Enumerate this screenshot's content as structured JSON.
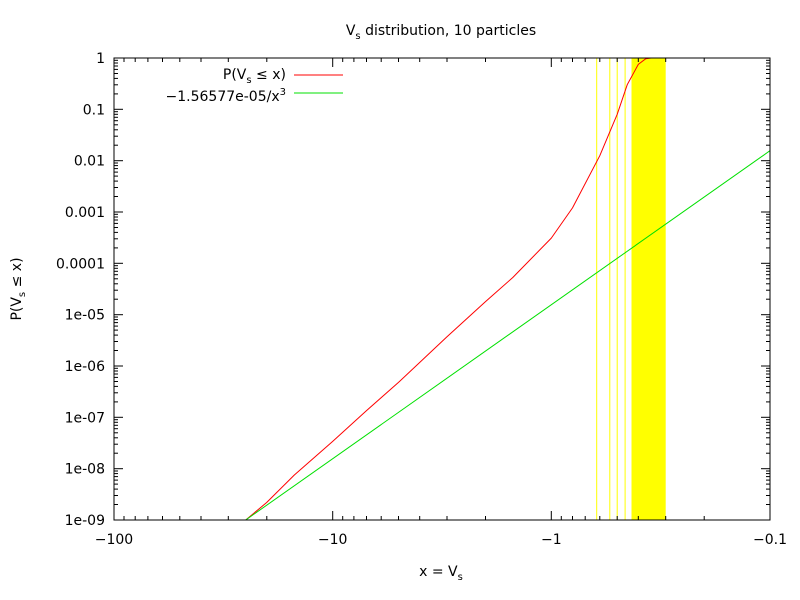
{
  "chart_data": {
    "type": "line",
    "title": {
      "main": "V",
      "sub": "s",
      "rest": " distribution, 10 particles"
    },
    "xlabel": {
      "main": "x = V",
      "sub": "s"
    },
    "ylabel": {
      "pre": "P(V",
      "sub": "s",
      "post": " ≤ x)"
    },
    "x_axis": {
      "scale": "log-negative",
      "range": [
        -100,
        -0.1
      ],
      "ticks": [
        -100,
        -10,
        -1,
        -0.1
      ],
      "tick_labels": [
        "−100",
        "−10",
        "−1",
        "−0.1"
      ]
    },
    "y_axis": {
      "scale": "log",
      "range": [
        1e-09,
        1
      ],
      "ticks": [
        1e-09,
        1e-08,
        1e-07,
        1e-06,
        1e-05,
        0.0001,
        0.001,
        0.01,
        0.1,
        1
      ],
      "tick_labels": [
        "1e-09",
        "1e-08",
        "1e-07",
        "1e-06",
        "1e-05",
        "0.0001",
        "0.001",
        "0.01",
        "0.1",
        "1"
      ]
    },
    "grid": false,
    "legend_position": "top-left",
    "series": [
      {
        "name": "P(V_s ≤ x)",
        "legend": {
          "pre": "P(V",
          "sub": "s",
          "post": " ≤ x)"
        },
        "color": "#ff0000",
        "points": [
          [
            -25.0,
            1e-09
          ],
          [
            -20.0,
            2.2e-09
          ],
          [
            -15.0,
            7.5e-09
          ],
          [
            -10.0,
            3.4e-08
          ],
          [
            -7.0,
            1.35e-07
          ],
          [
            -5.0,
            4.8e-07
          ],
          [
            -3.0,
            3.7e-06
          ],
          [
            -2.0,
            1.8e-05
          ],
          [
            -1.5,
            5.3e-05
          ],
          [
            -1.0,
            0.00031
          ],
          [
            -0.8,
            0.0012
          ],
          [
            -0.6,
            0.0125
          ],
          [
            -0.5,
            0.08
          ],
          [
            -0.45,
            0.3
          ],
          [
            -0.4,
            0.75
          ],
          [
            -0.37,
            0.97
          ],
          [
            -0.35,
            1.0
          ],
          [
            -0.27,
            1.0
          ]
        ]
      },
      {
        "name": "−1.56577e-05/x^3",
        "legend": {
          "pre": "−1.56577e-05/x",
          "sup": "3",
          "post": ""
        },
        "color": "#00e000",
        "points": [
          [
            -25.0,
            1e-09
          ],
          [
            -0.1,
            0.0156577
          ]
        ]
      }
    ],
    "highlight": {
      "color": "#ffff00",
      "thin_lines": [
        -0.62,
        -0.54,
        -0.5,
        -0.46
      ],
      "band": [
        -0.43,
        -0.3
      ]
    }
  }
}
